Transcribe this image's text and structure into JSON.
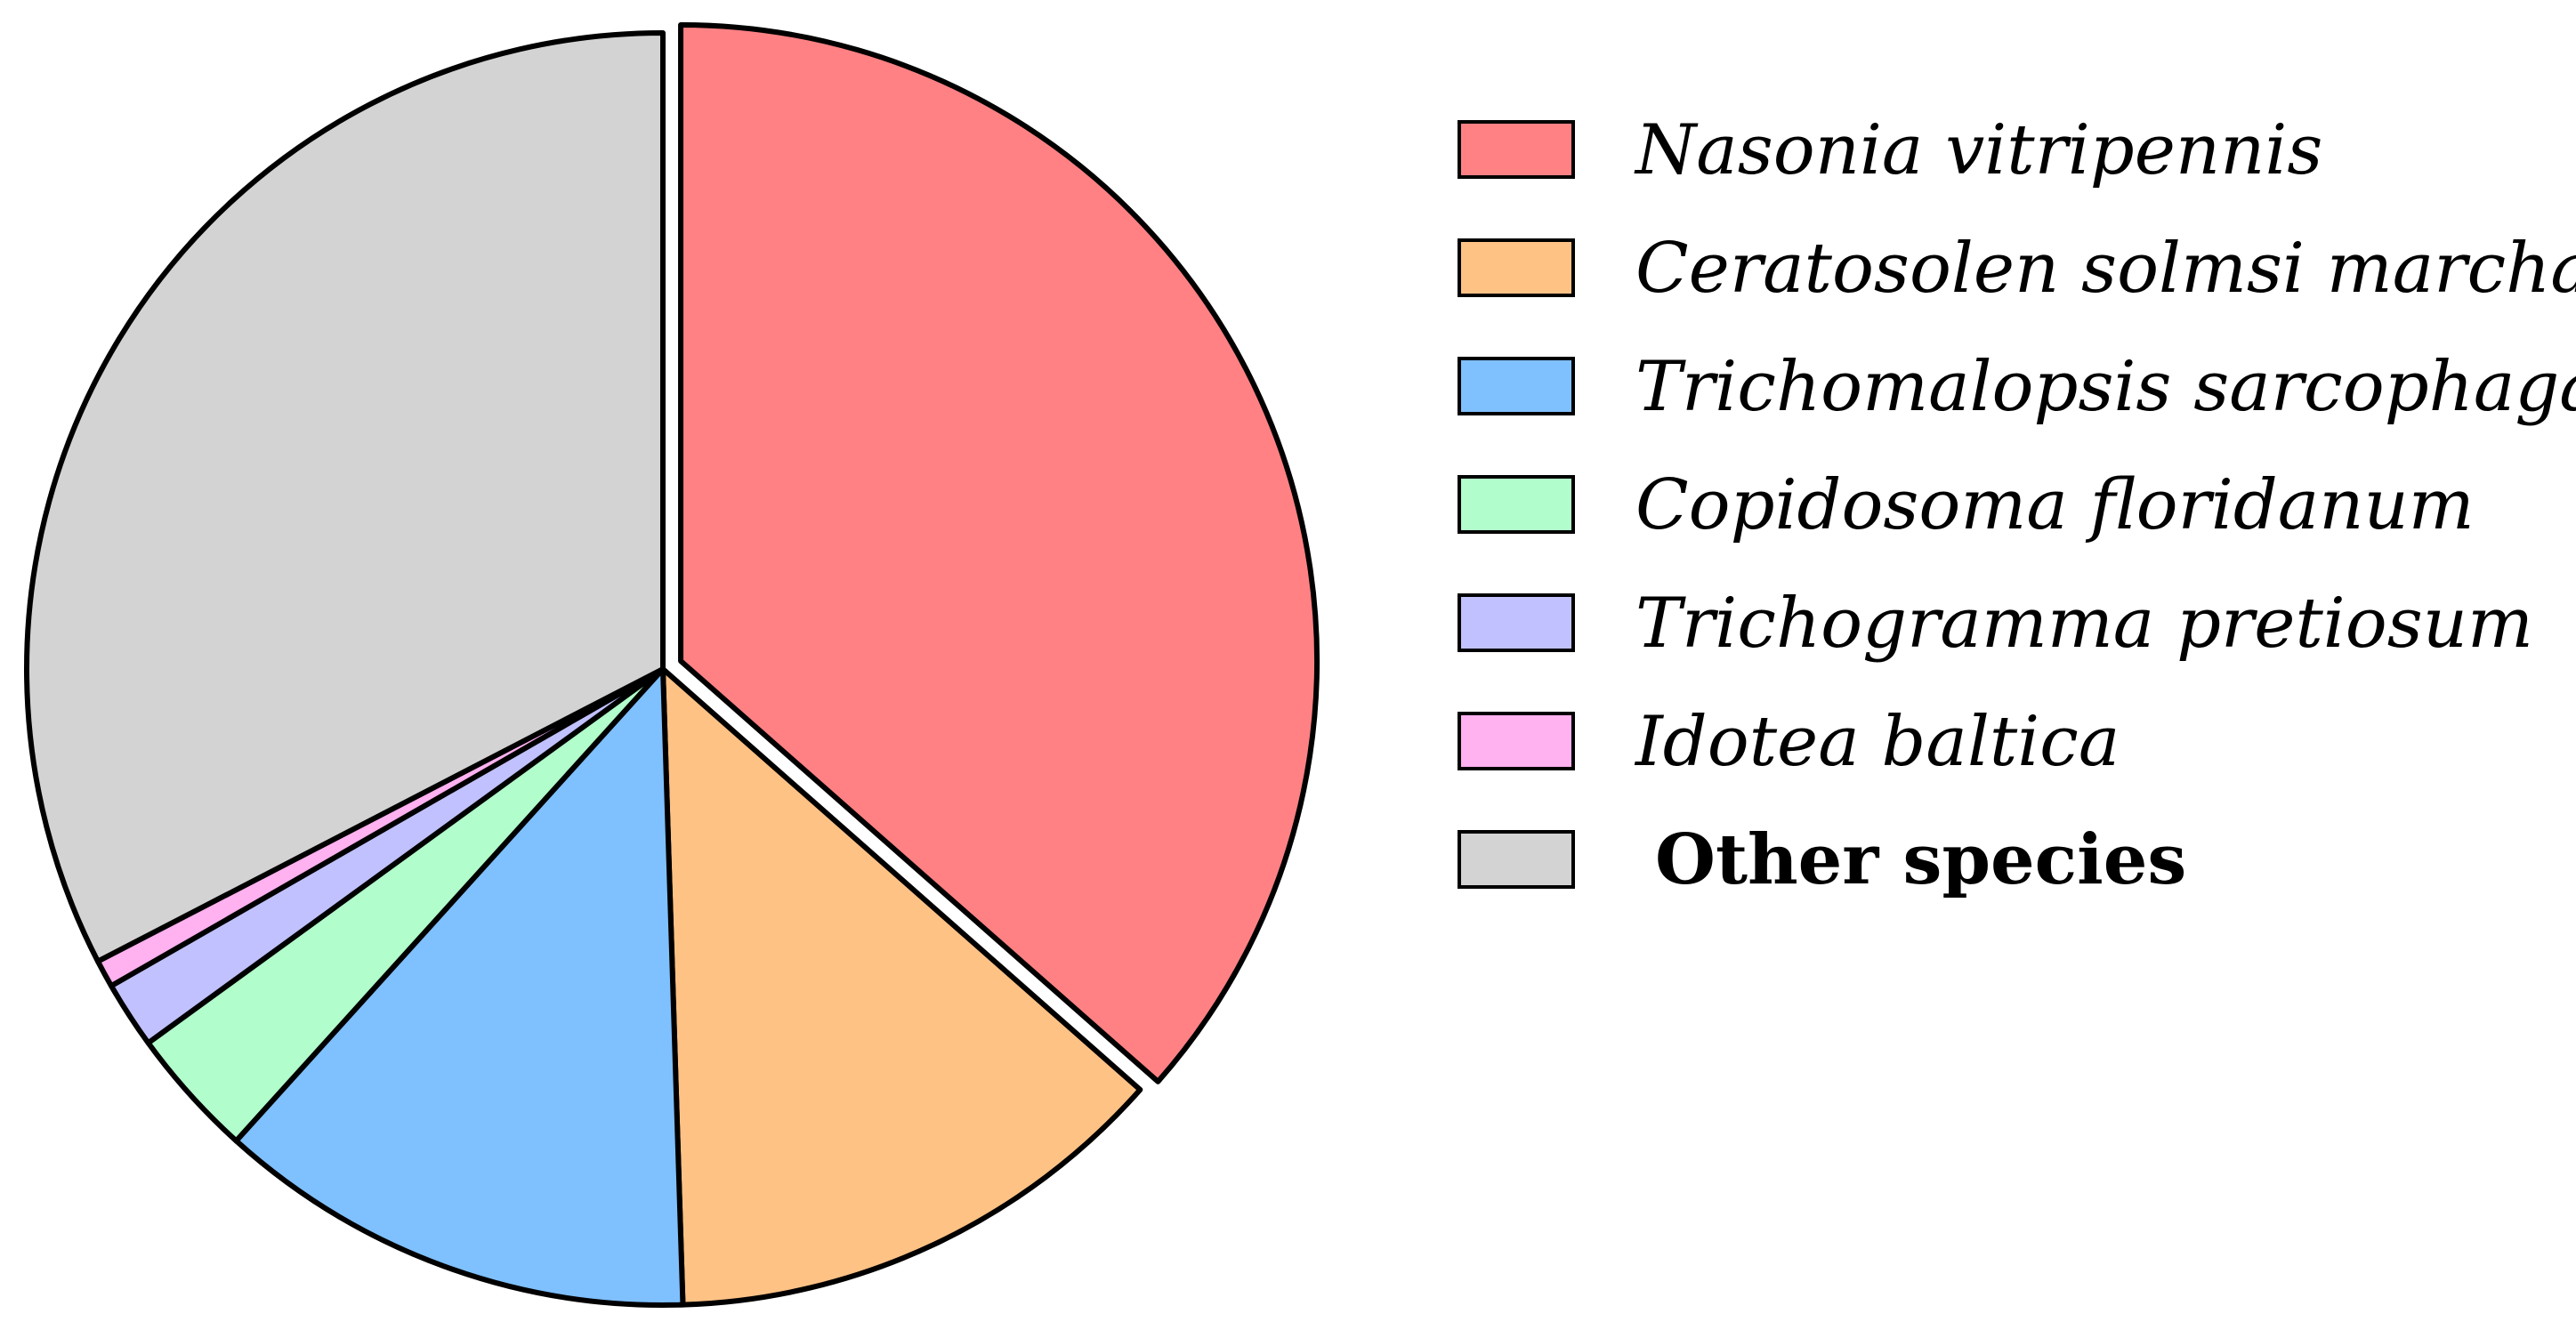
{
  "chart_data": {
    "type": "pie",
    "title": "",
    "series": [
      {
        "name": "Nasonia vitripennis",
        "value": 36.5,
        "color": "#ff8184",
        "italic": true,
        "exploded": true
      },
      {
        "name": "Ceratosolen solmsi marchali",
        "value": 13.0,
        "color": "#ffc285",
        "italic": true,
        "exploded": false
      },
      {
        "name": "Trichomalopsis sarcophagae",
        "value": 12.2,
        "color": "#7fc0ff",
        "italic": true,
        "exploded": false
      },
      {
        "name": "Copidosoma floridanum",
        "value": 3.3,
        "color": "#b1fdcb",
        "italic": true,
        "exploded": false
      },
      {
        "name": "Trichogramma pretiosum",
        "value": 1.7,
        "color": "#c1c1ff",
        "italic": true,
        "exploded": false
      },
      {
        "name": "Idotea baltica",
        "value": 0.7,
        "color": "#ffb1f0",
        "italic": true,
        "exploded": false
      },
      {
        "name": "Other species",
        "value": 32.6,
        "color": "#d3d3d3",
        "italic": false,
        "exploded": false
      }
    ],
    "legend_position": "right",
    "start_angle": "12 o'clock",
    "direction": "clockwise"
  }
}
